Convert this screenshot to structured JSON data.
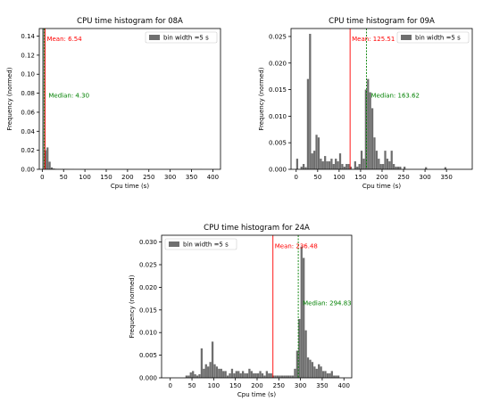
{
  "chart_data": [
    {
      "type": "bar",
      "title": "CPU time histogram for 08A",
      "xlabel": "Cpu time (s)",
      "ylabel": "Frequency (normed)",
      "xlim": [
        -7,
        418
      ],
      "ylim": [
        0,
        0.148
      ],
      "xticks": [
        0,
        50,
        100,
        150,
        200,
        250,
        300,
        350,
        400
      ],
      "yticks": [
        0.0,
        0.02,
        0.04,
        0.06,
        0.08,
        0.1,
        0.12,
        0.14
      ],
      "ytick_format": 2,
      "legend": "bin width =5 s",
      "legend_position": "top-right",
      "bar_color": "#6e6e6e",
      "bin_width": 5,
      "bins": [
        [
          0,
          0.148
        ],
        [
          5,
          0.02
        ],
        [
          10,
          0.023
        ],
        [
          15,
          0.008
        ],
        [
          20,
          0.002
        ],
        [
          25,
          0.0008
        ],
        [
          30,
          0.0005
        ],
        [
          35,
          0.0004
        ],
        [
          40,
          0.0003
        ],
        [
          45,
          0.0004
        ],
        [
          50,
          0.0004
        ],
        [
          55,
          0.0003
        ],
        [
          60,
          0.0002
        ],
        [
          65,
          0.0001
        ],
        [
          70,
          0.0001
        ],
        [
          200,
          0.00012
        ],
        [
          370,
          0.0001
        ]
      ],
      "mean": {
        "label": "Mean: 6.54",
        "value": 6.54,
        "color": "#ff0000"
      },
      "median": {
        "label": "Median: 4.30",
        "value": 4.3,
        "color": "#008000"
      }
    },
    {
      "type": "bar",
      "title": "CPU time histogram for 09A",
      "xlabel": "Cpu time (s)",
      "ylabel": "Frequency (normed)",
      "xlim": [
        -12,
        410
      ],
      "ylim": [
        0,
        0.0265
      ],
      "xticks": [
        0,
        50,
        100,
        150,
        200,
        250,
        300,
        350
      ],
      "yticks": [
        0.0,
        0.005,
        0.01,
        0.015,
        0.02,
        0.025
      ],
      "ytick_format": 3,
      "legend": "bin width =5 s",
      "legend_position": "top-right",
      "bar_color": "#6e6e6e",
      "bin_width": 5,
      "bins": [
        [
          0,
          0.002
        ],
        [
          10,
          0.0005
        ],
        [
          15,
          0.001
        ],
        [
          20,
          0.0004
        ],
        [
          25,
          0.017
        ],
        [
          30,
          0.0255
        ],
        [
          35,
          0.003
        ],
        [
          40,
          0.0035
        ],
        [
          45,
          0.0065
        ],
        [
          50,
          0.006
        ],
        [
          55,
          0.002
        ],
        [
          60,
          0.0015
        ],
        [
          65,
          0.0025
        ],
        [
          70,
          0.0015
        ],
        [
          75,
          0.0015
        ],
        [
          80,
          0.002
        ],
        [
          85,
          0.001
        ],
        [
          90,
          0.002
        ],
        [
          95,
          0.0015
        ],
        [
          100,
          0.003
        ],
        [
          105,
          0.001
        ],
        [
          110,
          0.0005
        ],
        [
          115,
          0.001
        ],
        [
          120,
          0.001
        ],
        [
          125,
          0.0005
        ],
        [
          135,
          0.0015
        ],
        [
          140,
          0.0005
        ],
        [
          145,
          0.001
        ],
        [
          150,
          0.0035
        ],
        [
          155,
          0.002
        ],
        [
          160,
          0.015
        ],
        [
          165,
          0.017
        ],
        [
          170,
          0.0145
        ],
        [
          175,
          0.0115
        ],
        [
          180,
          0.006
        ],
        [
          185,
          0.0035
        ],
        [
          190,
          0.002
        ],
        [
          195,
          0.001
        ],
        [
          200,
          0.001
        ],
        [
          205,
          0.0035
        ],
        [
          210,
          0.002
        ],
        [
          215,
          0.0015
        ],
        [
          220,
          0.0035
        ],
        [
          225,
          0.001
        ],
        [
          230,
          0.0005
        ],
        [
          235,
          0.0005
        ],
        [
          240,
          0.0005
        ],
        [
          250,
          0.0005
        ],
        [
          300,
          0.0004
        ],
        [
          345,
          0.0004
        ]
      ],
      "mean": {
        "label": "Mean: 125.51",
        "value": 125.51,
        "color": "#ff0000"
      },
      "median": {
        "label": "Median: 163.62",
        "value": 163.62,
        "color": "#008000"
      }
    },
    {
      "type": "bar",
      "title": "CPU time histogram for 24A",
      "xlabel": "Cpu time (s)",
      "ylabel": "Frequency (normed)",
      "xlim": [
        -20,
        418
      ],
      "ylim": [
        0,
        0.0315
      ],
      "xticks": [
        0,
        50,
        100,
        150,
        200,
        250,
        300,
        350,
        400
      ],
      "yticks": [
        0.0,
        0.005,
        0.01,
        0.015,
        0.02,
        0.025,
        0.03
      ],
      "ytick_format": 3,
      "legend": "bin width =5 s",
      "legend_position": "top-left",
      "bar_color": "#6e6e6e",
      "bin_width": 5,
      "bins": [
        [
          35,
          0.0005
        ],
        [
          40,
          0.0005
        ],
        [
          45,
          0.0012
        ],
        [
          50,
          0.0015
        ],
        [
          55,
          0.0008
        ],
        [
          60,
          0.0005
        ],
        [
          65,
          0.0008
        ],
        [
          70,
          0.0065
        ],
        [
          75,
          0.002
        ],
        [
          80,
          0.003
        ],
        [
          85,
          0.0025
        ],
        [
          90,
          0.0035
        ],
        [
          95,
          0.008
        ],
        [
          100,
          0.003
        ],
        [
          105,
          0.0025
        ],
        [
          110,
          0.002
        ],
        [
          115,
          0.002
        ],
        [
          120,
          0.0015
        ],
        [
          125,
          0.0015
        ],
        [
          130,
          0.0005
        ],
        [
          135,
          0.001
        ],
        [
          140,
          0.002
        ],
        [
          145,
          0.001
        ],
        [
          150,
          0.0015
        ],
        [
          155,
          0.0015
        ],
        [
          160,
          0.001
        ],
        [
          165,
          0.0015
        ],
        [
          170,
          0.001
        ],
        [
          175,
          0.001
        ],
        [
          180,
          0.002
        ],
        [
          185,
          0.0015
        ],
        [
          190,
          0.001
        ],
        [
          195,
          0.001
        ],
        [
          200,
          0.001
        ],
        [
          205,
          0.0015
        ],
        [
          210,
          0.001
        ],
        [
          215,
          0.0005
        ],
        [
          220,
          0.0015
        ],
        [
          225,
          0.001
        ],
        [
          230,
          0.001
        ],
        [
          235,
          0.0005
        ],
        [
          240,
          0.0005
        ],
        [
          245,
          0.0005
        ],
        [
          250,
          0.0005
        ],
        [
          255,
          0.0005
        ],
        [
          260,
          0.0005
        ],
        [
          265,
          0.0005
        ],
        [
          270,
          0.0005
        ],
        [
          275,
          0.0005
        ],
        [
          280,
          0.0005
        ],
        [
          285,
          0.002
        ],
        [
          290,
          0.006
        ],
        [
          295,
          0.013
        ],
        [
          300,
          0.029
        ],
        [
          305,
          0.0265
        ],
        [
          310,
          0.0105
        ],
        [
          315,
          0.0045
        ],
        [
          320,
          0.004
        ],
        [
          325,
          0.0035
        ],
        [
          330,
          0.0025
        ],
        [
          335,
          0.002
        ],
        [
          340,
          0.003
        ],
        [
          345,
          0.0025
        ],
        [
          350,
          0.0015
        ],
        [
          355,
          0.0015
        ],
        [
          360,
          0.001
        ],
        [
          365,
          0.001
        ],
        [
          370,
          0.0015
        ],
        [
          375,
          0.0005
        ],
        [
          380,
          0.0005
        ],
        [
          385,
          0.0005
        ]
      ],
      "mean": {
        "label": "Mean: 236.48",
        "value": 236.48,
        "color": "#ff0000"
      },
      "median": {
        "label": "Median: 294.83",
        "value": 294.83,
        "color": "#008000"
      }
    }
  ]
}
